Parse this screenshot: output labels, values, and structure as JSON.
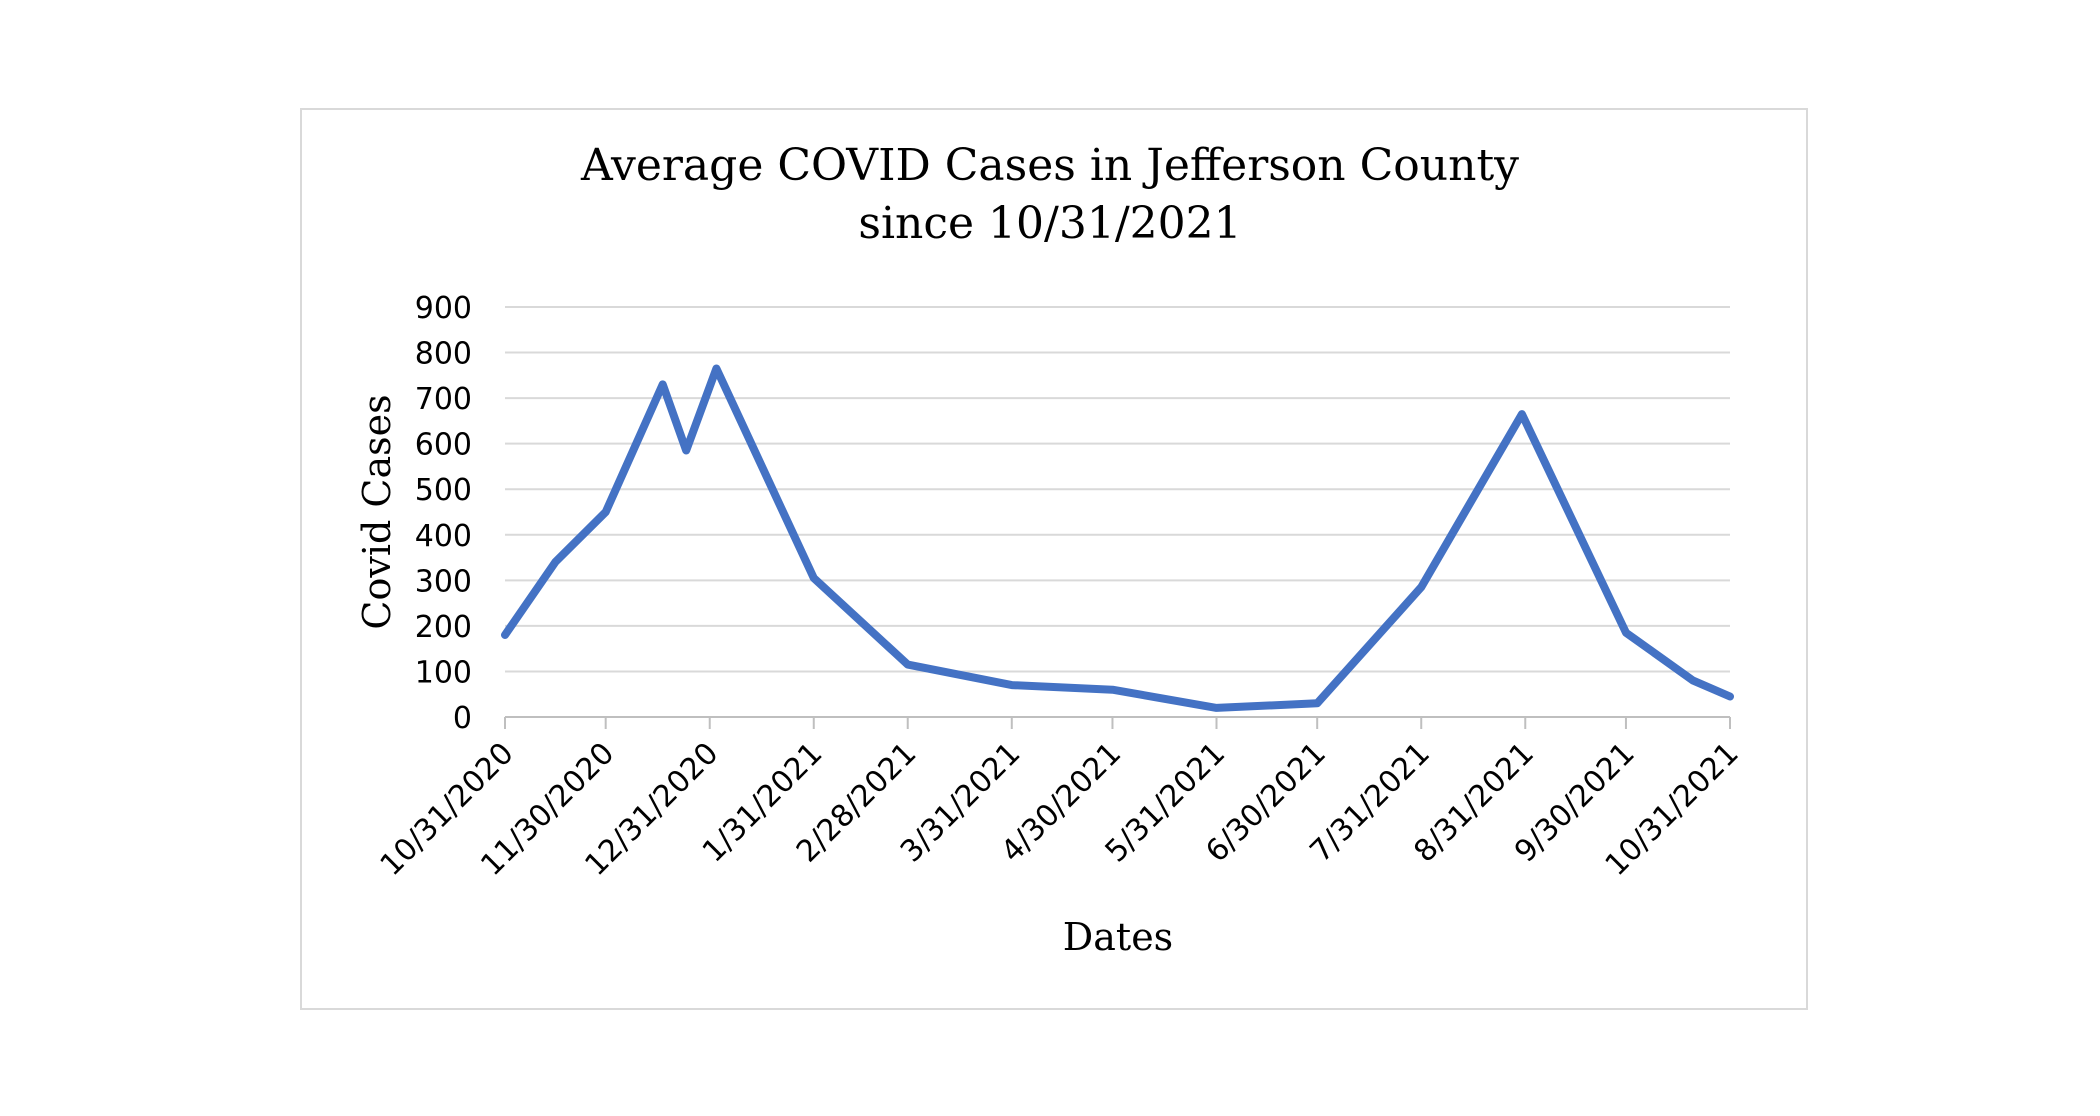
{
  "chart_data": {
    "type": "line",
    "title_lines": [
      "Average COVID Cases in Jefferson County",
      "since 10/31/2021"
    ],
    "xlabel": "Dates",
    "ylabel": "Covid Cases",
    "ylim": [
      0,
      900
    ],
    "yticks": [
      0,
      100,
      200,
      300,
      400,
      500,
      600,
      700,
      800,
      900
    ],
    "xlim": [
      "2020-10-31",
      "2021-10-31"
    ],
    "xtick_dates": [
      "2020-10-31",
      "2020-11-30",
      "2020-12-31",
      "2021-01-31",
      "2021-02-28",
      "2021-03-31",
      "2021-04-30",
      "2021-05-31",
      "2021-06-30",
      "2021-07-31",
      "2021-08-31",
      "2021-09-30",
      "2021-10-31"
    ],
    "xtick_labels": [
      "10/31/2020",
      "11/30/2020",
      "12/31/2020",
      "1/31/2021",
      "2/28/2021",
      "3/31/2021",
      "4/30/2021",
      "5/31/2021",
      "6/30/2021",
      "7/31/2021",
      "8/31/2021",
      "9/30/2021",
      "10/31/2021"
    ],
    "grid": true,
    "legend": false,
    "series": [
      {
        "color": "#4472c4",
        "x": [
          "2020-10-31",
          "2020-11-15",
          "2020-11-30",
          "2020-12-17",
          "2020-12-24",
          "2021-01-02",
          "2021-01-31",
          "2021-02-28",
          "2021-03-31",
          "2021-04-30",
          "2021-05-31",
          "2021-06-30",
          "2021-07-31",
          "2021-08-30",
          "2021-09-30",
          "2021-10-20",
          "2021-10-31"
        ],
        "y": [
          180,
          340,
          450,
          730,
          585,
          765,
          305,
          115,
          70,
          60,
          20,
          30,
          285,
          665,
          185,
          80,
          45
        ]
      }
    ]
  }
}
